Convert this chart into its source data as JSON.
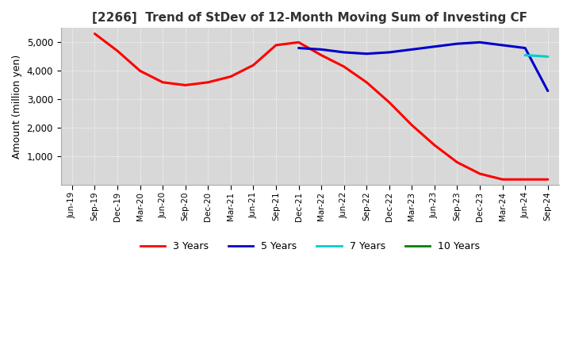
{
  "title": "[2266]  Trend of StDev of 12-Month Moving Sum of Investing CF",
  "ylabel": "Amount (million yen)",
  "ylim": [
    0,
    5500
  ],
  "yticks": [
    1000,
    2000,
    3000,
    4000,
    5000
  ],
  "background_color": "#ffffff",
  "plot_background": "#d8d8d8",
  "colors": {
    "3y": "#ff0000",
    "5y": "#0000cc",
    "7y": "#00cccc",
    "10y": "#008000"
  },
  "x_labels": [
    "Jun-19",
    "Sep-19",
    "Dec-19",
    "Mar-20",
    "Jun-20",
    "Sep-20",
    "Dec-20",
    "Mar-21",
    "Jun-21",
    "Sep-21",
    "Dec-21",
    "Mar-22",
    "Jun-22",
    "Sep-22",
    "Dec-22",
    "Mar-23",
    "Jun-23",
    "Sep-23",
    "Dec-23",
    "Mar-24",
    "Jun-24",
    "Sep-24"
  ],
  "series_3y": [
    null,
    5300,
    4700,
    4000,
    3600,
    3500,
    3600,
    3800,
    4200,
    4900,
    5000,
    4550,
    4150,
    3600,
    2900,
    2100,
    1400,
    800,
    400,
    200,
    200,
    200
  ],
  "series_5y": [
    null,
    null,
    null,
    null,
    null,
    null,
    null,
    null,
    null,
    null,
    4800,
    4750,
    4650,
    4600,
    4650,
    4750,
    4850,
    4950,
    5000,
    4900,
    4800,
    3300
  ],
  "series_7y": [
    null,
    null,
    null,
    null,
    null,
    null,
    null,
    null,
    null,
    null,
    null,
    null,
    null,
    null,
    null,
    null,
    null,
    null,
    null,
    null,
    4550,
    4500
  ],
  "series_10y": [
    null,
    null,
    null,
    null,
    null,
    null,
    null,
    null,
    null,
    null,
    null,
    null,
    null,
    null,
    null,
    null,
    null,
    null,
    null,
    null,
    null,
    null
  ]
}
